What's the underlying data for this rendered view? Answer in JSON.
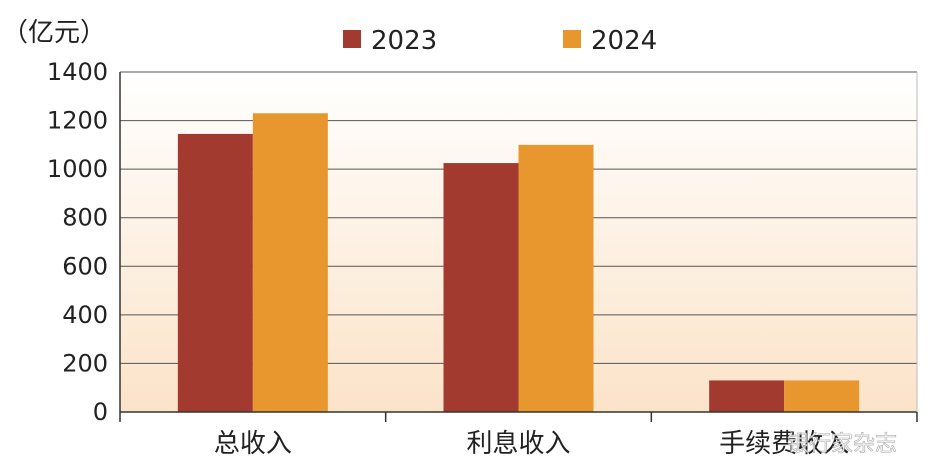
{
  "chart_data": {
    "type": "bar",
    "categories": [
      "总收入",
      "利息收入",
      "手续费收入"
    ],
    "series": [
      {
        "name": "2023",
        "values": [
          1145,
          1025,
          130
        ],
        "color": "#a23a2f"
      },
      {
        "name": "2024",
        "values": [
          1230,
          1100,
          130
        ],
        "color": "#e8962e"
      }
    ],
    "ylabel": "（亿元）",
    "ylim": [
      0,
      1400
    ],
    "yticks": [
      0,
      200,
      400,
      600,
      800,
      1000,
      1200,
      1400
    ],
    "grid": true,
    "legend": "top"
  },
  "watermark": "银行家杂志",
  "colors": {
    "plot_bg_top": "#ffffff",
    "plot_bg_bottom": "#fbe3c8",
    "grid": "#555555",
    "axis": "#333333"
  }
}
